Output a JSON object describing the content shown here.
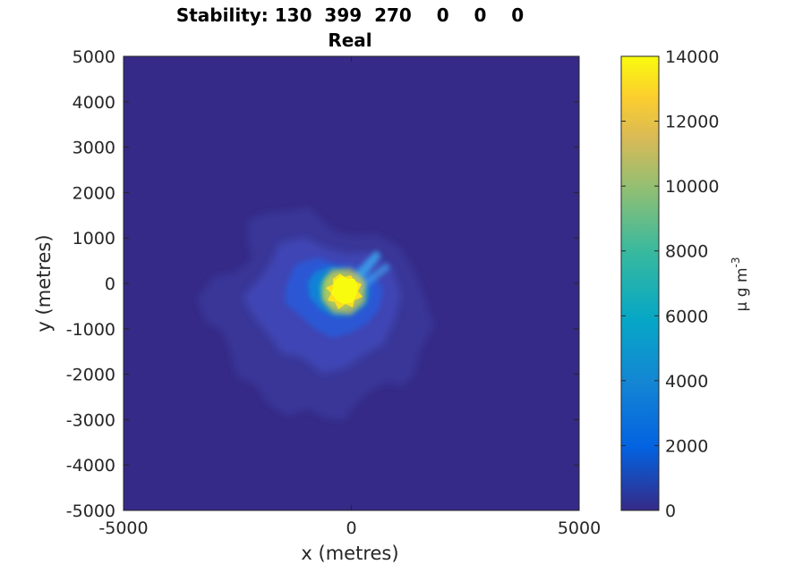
{
  "chart_data": {
    "type": "heatmap",
    "title": "Stability: 130  399  270    0    0    0",
    "subtitle": "Real",
    "xlabel": "x (metres)",
    "ylabel": "y (metres)",
    "xlim": [
      -5000,
      5000
    ],
    "ylim": [
      -5000,
      5000
    ],
    "x_ticks": [
      "-5000",
      "0",
      "5000"
    ],
    "y_ticks": [
      "5000",
      "4000",
      "3000",
      "2000",
      "1000",
      "0",
      "-1000",
      "-2000",
      "-3000",
      "-4000",
      "-5000"
    ],
    "colorbar": {
      "label_main": "μ g m",
      "label_sup": "-3",
      "clim": [
        0,
        14000
      ],
      "ticks": [
        "14000",
        "12000",
        "10000",
        "8000",
        "6000",
        "4000",
        "2000",
        "0"
      ],
      "colormap": [
        "#352a87",
        "#0363e1",
        "#1485d4",
        "#06a7c6",
        "#38b99e",
        "#92bf73",
        "#d9ba56",
        "#fcce2e",
        "#f9fb0e"
      ]
    },
    "plume": {
      "source": [
        -150,
        0
      ],
      "peak": 14000,
      "grid_colors": [
        "#352a87",
        "#f9fb0e"
      ],
      "description_contours": [
        {
          "level": 200,
          "extent_points": [
            [
              -2200,
              1500
            ],
            [
              -1300,
              1700
            ],
            [
              -800,
              1050
            ],
            [
              200,
              1100
            ],
            [
              1800,
              200
            ],
            [
              1700,
              -1800
            ],
            [
              900,
              -2300
            ],
            [
              -400,
              -3000
            ],
            [
              -1100,
              -2500
            ],
            [
              -2700,
              -1300
            ],
            [
              -3400,
              -300
            ]
          ]
        },
        {
          "level": 600,
          "extent_points": [
            [
              -1500,
              900
            ],
            [
              -700,
              600
            ],
            [
              200,
              700
            ],
            [
              1000,
              0
            ],
            [
              900,
              -1300
            ],
            [
              -200,
              -1800
            ],
            [
              -1200,
              -1200
            ],
            [
              -2000,
              -300
            ]
          ]
        },
        {
          "level": 2000,
          "extent_points": [
            [
              -800,
              400
            ],
            [
              -200,
              500
            ],
            [
              500,
              200
            ],
            [
              400,
              -600
            ],
            [
              -300,
              -800
            ],
            [
              -1000,
              -300
            ]
          ]
        },
        {
          "level": 6000,
          "extent_points": [
            [
              -400,
              250
            ],
            [
              0,
              300
            ],
            [
              200,
              0
            ],
            [
              50,
              -300
            ],
            [
              -300,
              -350
            ],
            [
              -500,
              -50
            ]
          ]
        }
      ]
    }
  }
}
